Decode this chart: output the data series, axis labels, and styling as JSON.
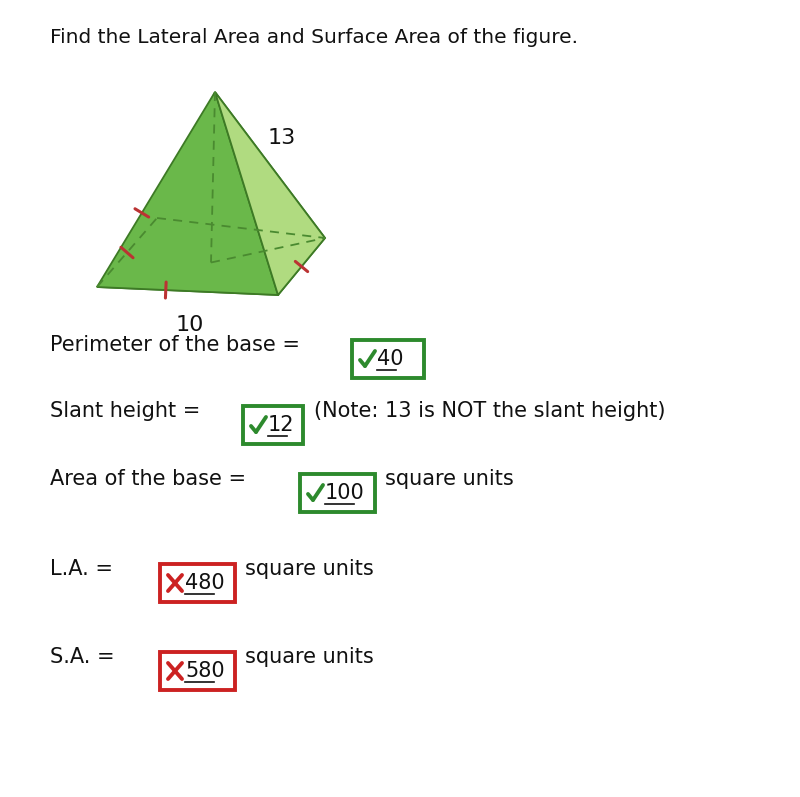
{
  "title": "Find the Lateral Area and Surface Area of the figure.",
  "pyramid_label_13": "13",
  "pyramid_label_10": "10",
  "perimeter_label": "Perimeter of the base =",
  "perimeter_value": "40",
  "perimeter_correct": true,
  "slant_label": "Slant height =",
  "slant_value": "12",
  "slant_note": "(Note: 13 is NOT the slant height)",
  "slant_correct": true,
  "area_base_label": "Area of the base =",
  "area_base_value": "100",
  "area_base_suffix": "square units",
  "area_base_correct": true,
  "la_label": "L.A. =",
  "la_value": "480",
  "la_suffix": "square units",
  "la_correct": false,
  "sa_label": "S.A. =",
  "sa_value": "580",
  "sa_suffix": "square units",
  "sa_correct": false,
  "bg_color": "#ffffff",
  "text_color": "#333333",
  "green_color": "#2d8a2d",
  "red_color": "#cc2222",
  "tick_color": "#bb3333"
}
